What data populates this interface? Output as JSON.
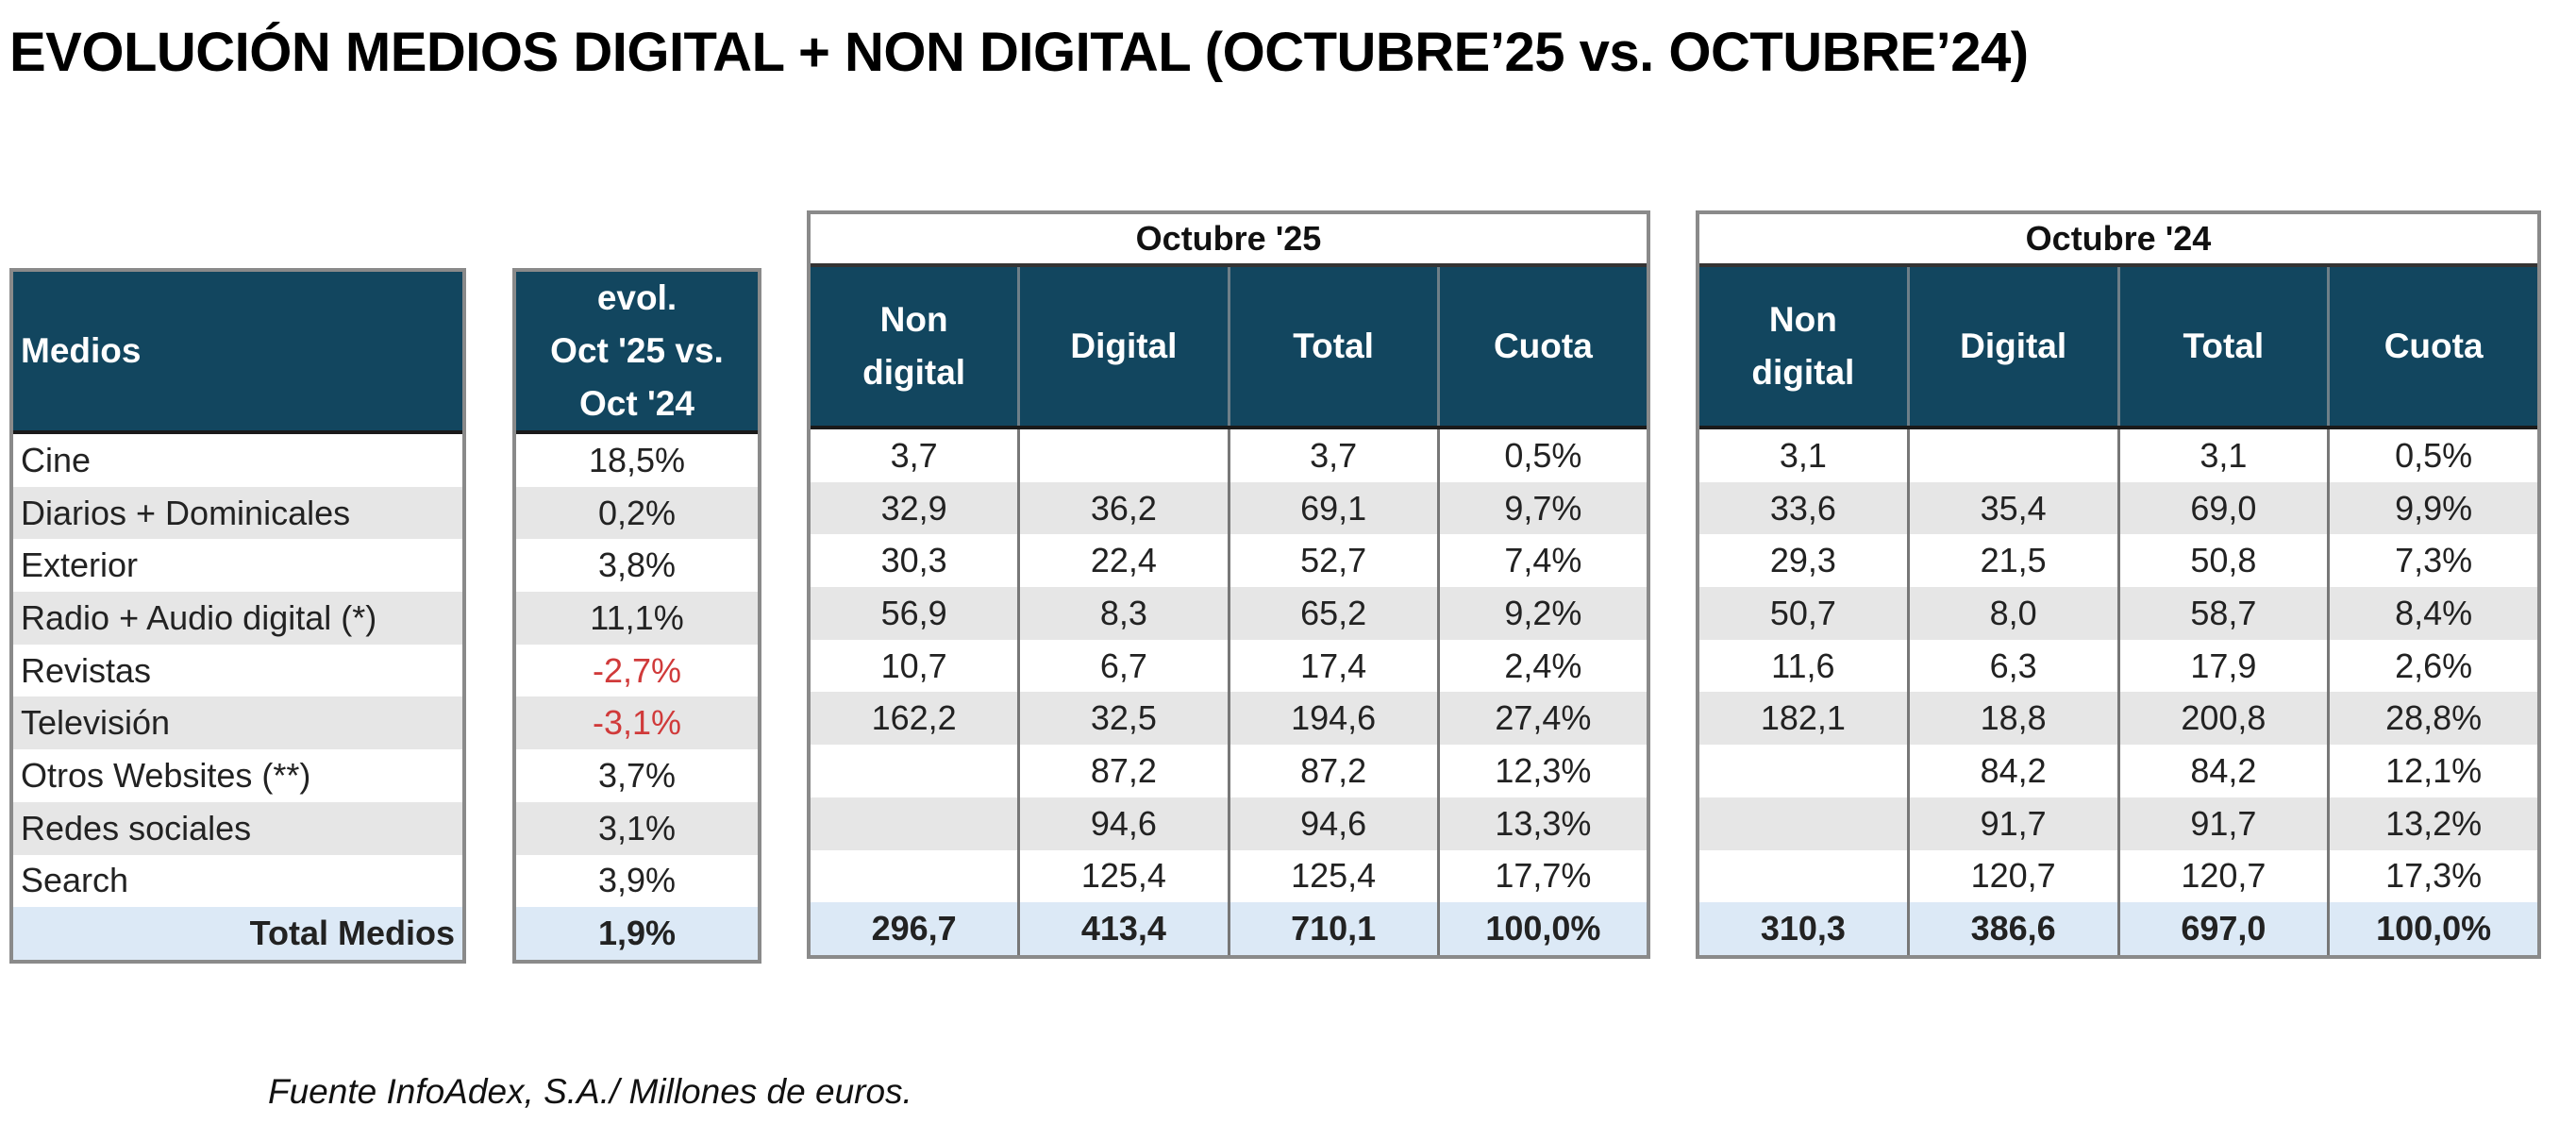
{
  "title": "EVOLUCIÓN MEDIOS DIGITAL + NON DIGITAL (OCTUBRE’25 vs. OCTUBRE’24)",
  "colors": {
    "header_bg": "#12465f",
    "stripe": "#e6e6e6",
    "total_bg": "#dce9f6",
    "negative": "#d03a3a"
  },
  "medios": {
    "header": "Medios",
    "rows": [
      "Cine",
      "Diarios + Dominicales",
      "Exterior",
      "Radio + Audio digital (*)",
      "Revistas",
      "Televisión",
      "Otros Websites (**)",
      "Redes sociales",
      "Search"
    ],
    "total": "Total Medios"
  },
  "evol": {
    "header_lines": [
      "evol.",
      "Oct '25 vs.",
      "Oct '24"
    ],
    "rows": [
      "18,5%",
      "0,2%",
      "3,8%",
      "11,1%",
      "-2,7%",
      "-3,1%",
      "3,7%",
      "3,1%",
      "3,9%"
    ],
    "total": "1,9%"
  },
  "oct25": {
    "group": "Octubre '25",
    "headers": [
      [
        "Non",
        "digital"
      ],
      [
        "Digital"
      ],
      [
        "Total"
      ],
      [
        "Cuota"
      ]
    ],
    "rows": [
      [
        "3,7",
        "",
        "3,7",
        "0,5%"
      ],
      [
        "32,9",
        "36,2",
        "69,1",
        "9,7%"
      ],
      [
        "30,3",
        "22,4",
        "52,7",
        "7,4%"
      ],
      [
        "56,9",
        "8,3",
        "65,2",
        "9,2%"
      ],
      [
        "10,7",
        "6,7",
        "17,4",
        "2,4%"
      ],
      [
        "162,2",
        "32,5",
        "194,6",
        "27,4%"
      ],
      [
        "",
        "87,2",
        "87,2",
        "12,3%"
      ],
      [
        "",
        "94,6",
        "94,6",
        "13,3%"
      ],
      [
        "",
        "125,4",
        "125,4",
        "17,7%"
      ]
    ],
    "total": [
      "296,7",
      "413,4",
      "710,1",
      "100,0%"
    ]
  },
  "oct24": {
    "group": "Octubre '24",
    "headers": [
      [
        "Non",
        "digital"
      ],
      [
        "Digital"
      ],
      [
        "Total"
      ],
      [
        "Cuota"
      ]
    ],
    "rows": [
      [
        "3,1",
        "",
        "3,1",
        "0,5%"
      ],
      [
        "33,6",
        "35,4",
        "69,0",
        "9,9%"
      ],
      [
        "29,3",
        "21,5",
        "50,8",
        "7,3%"
      ],
      [
        "50,7",
        "8,0",
        "58,7",
        "8,4%"
      ],
      [
        "11,6",
        "6,3",
        "17,9",
        "2,6%"
      ],
      [
        "182,1",
        "18,8",
        "200,8",
        "28,8%"
      ],
      [
        "",
        "84,2",
        "84,2",
        "12,1%"
      ],
      [
        "",
        "91,7",
        "91,7",
        "13,2%"
      ],
      [
        "",
        "120,7",
        "120,7",
        "17,3%"
      ]
    ],
    "total": [
      "310,3",
      "386,6",
      "697,0",
      "100,0%"
    ]
  },
  "footnote": "Fuente InfoAdex, S.A./ Millones de euros."
}
